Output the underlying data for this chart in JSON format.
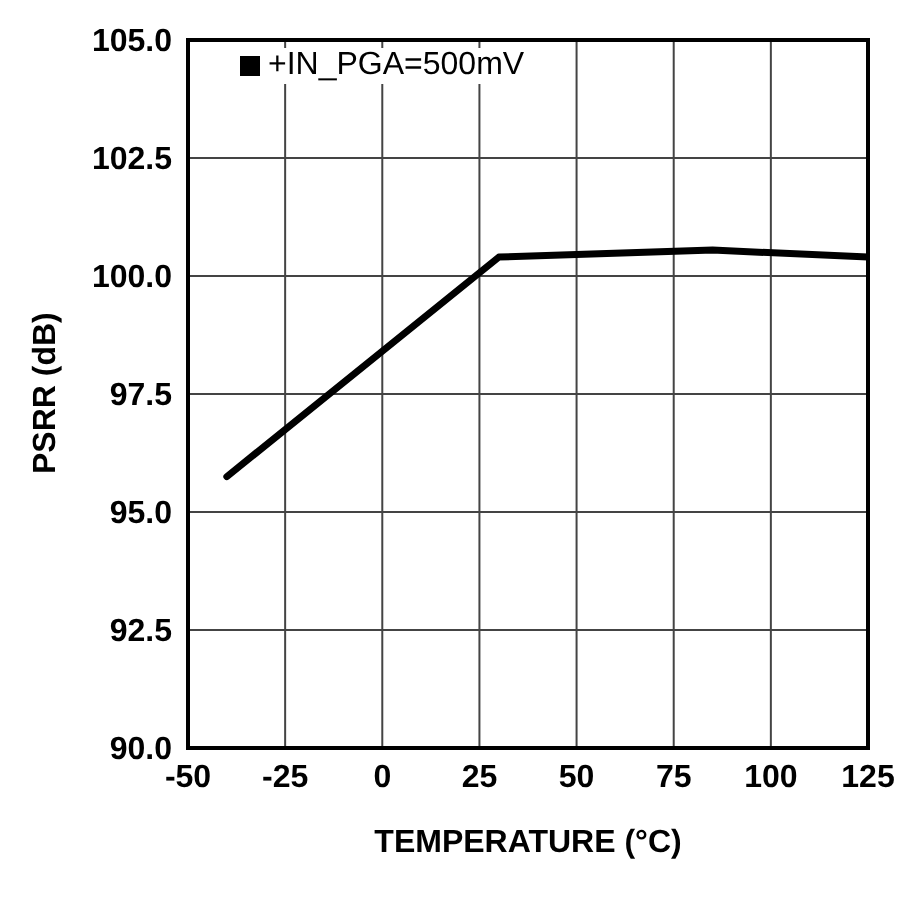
{
  "chart_data": {
    "type": "line",
    "xlabel": "TEMPERATURE (°C)",
    "ylabel": "PSRR (dB)",
    "series": [
      {
        "name": "+IN_PGA=500mV",
        "color": "#000000",
        "x": [
          -40,
          30,
          85,
          125
        ],
        "values": [
          95.75,
          100.4,
          100.55,
          100.4
        ]
      }
    ],
    "xlim": [
      -50,
      125
    ],
    "xticks": [
      -50,
      -25,
      0,
      25,
      50,
      75,
      100,
      125
    ],
    "ylim": [
      90,
      105
    ],
    "yticks": [
      {
        "value": 90,
        "label": "90.0"
      },
      {
        "value": 92.5,
        "label": "92.5"
      },
      {
        "value": 95,
        "label": "95.0"
      },
      {
        "value": 97.5,
        "label": "97.5"
      },
      {
        "value": 100,
        "label": "100.0"
      },
      {
        "value": 102.5,
        "label": "102.5"
      },
      {
        "value": 105,
        "label": "105.0"
      }
    ],
    "grid": true,
    "legend": "top left",
    "marker": "none",
    "line_style": "solid"
  }
}
